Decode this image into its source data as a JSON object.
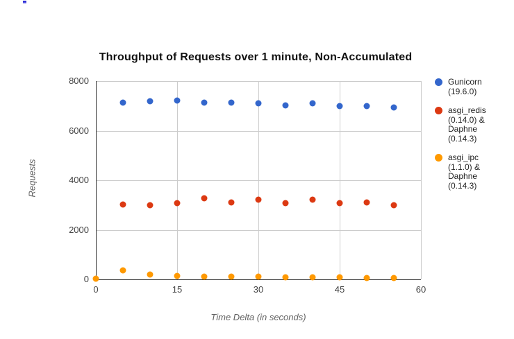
{
  "page": {
    "background": "#ffffff",
    "stray_mark_color": "#2b2bd5"
  },
  "chart_data": {
    "type": "scatter",
    "title": "Throughput of Requests over 1 minute, Non-Accumulated",
    "xlabel": "Time Delta (in seconds)",
    "ylabel": "Requests",
    "xlim": [
      0,
      60
    ],
    "ylim": [
      0,
      8000
    ],
    "x_ticks": [
      0,
      15,
      30,
      45,
      60
    ],
    "y_ticks": [
      0,
      2000,
      4000,
      6000,
      8000
    ],
    "grid": true,
    "legend_position": "right",
    "series": [
      {
        "name": "Gunicorn (19.6.0)",
        "legend_lines": [
          "Gunicorn",
          "(19.6.0)"
        ],
        "color": "#3366CC",
        "points": [
          [
            5,
            7120
          ],
          [
            10,
            7190
          ],
          [
            15,
            7230
          ],
          [
            20,
            7120
          ],
          [
            25,
            7140
          ],
          [
            30,
            7110
          ],
          [
            35,
            7030
          ],
          [
            40,
            7110
          ],
          [
            45,
            7000
          ],
          [
            50,
            6980
          ],
          [
            55,
            6950
          ]
        ]
      },
      {
        "name": "asgi_redis (0.14.0) & Daphne (0.14.3)",
        "legend_lines": [
          "asgi_redis",
          "(0.14.0) &",
          "Daphne",
          "(0.14.3)"
        ],
        "color": "#DC3912",
        "points": [
          [
            5,
            3010
          ],
          [
            10,
            2980
          ],
          [
            15,
            3070
          ],
          [
            20,
            3260
          ],
          [
            25,
            3100
          ],
          [
            30,
            3230
          ],
          [
            35,
            3090
          ],
          [
            40,
            3220
          ],
          [
            45,
            3080
          ],
          [
            50,
            3100
          ],
          [
            55,
            2990
          ]
        ]
      },
      {
        "name": "asgi_ipc (1.1.0) & Daphne (0.14.3)",
        "legend_lines": [
          "asgi_ipc",
          "(1.1.0) &",
          "Daphne",
          "(0.14.3)"
        ],
        "color": "#FF9900",
        "points": [
          [
            0,
            20
          ],
          [
            5,
            360
          ],
          [
            10,
            195
          ],
          [
            15,
            140
          ],
          [
            20,
            110
          ],
          [
            25,
            110
          ],
          [
            30,
            100
          ],
          [
            35,
            90
          ],
          [
            40,
            90
          ],
          [
            45,
            70
          ],
          [
            50,
            60
          ],
          [
            55,
            60
          ]
        ]
      }
    ]
  }
}
